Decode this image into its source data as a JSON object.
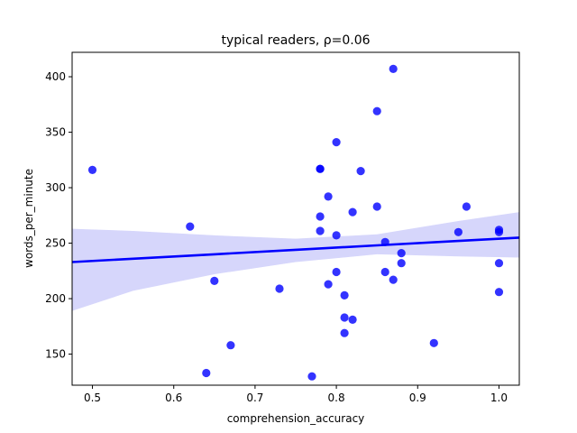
{
  "chart_data": {
    "type": "scatter",
    "title": "typical readers, ρ=0.06",
    "xlabel": "comprehension_accuracy",
    "ylabel": "words_per_minute",
    "xlim": [
      0.475,
      1.025
    ],
    "ylim": [
      122,
      422
    ],
    "x_ticks": [
      0.5,
      0.6,
      0.7,
      0.8,
      0.9,
      1.0
    ],
    "x_tick_labels": [
      "0.5",
      "0.6",
      "0.7",
      "0.8",
      "0.9",
      "1.0"
    ],
    "y_ticks": [
      150,
      200,
      250,
      300,
      350,
      400
    ],
    "y_tick_labels": [
      "150",
      "200",
      "250",
      "300",
      "350",
      "400"
    ],
    "grid": false,
    "legend": "none",
    "colors": {
      "points": "#0000ff",
      "line": "#0000ff",
      "band": "#d6d6fb"
    },
    "series": [
      {
        "points": [
          {
            "x": 0.5,
            "y": 316
          },
          {
            "x": 0.62,
            "y": 265
          },
          {
            "x": 0.64,
            "y": 133
          },
          {
            "x": 0.65,
            "y": 216
          },
          {
            "x": 0.67,
            "y": 158
          },
          {
            "x": 0.73,
            "y": 209
          },
          {
            "x": 0.77,
            "y": 130
          },
          {
            "x": 0.78,
            "y": 317
          },
          {
            "x": 0.78,
            "y": 317
          },
          {
            "x": 0.78,
            "y": 274
          },
          {
            "x": 0.78,
            "y": 261
          },
          {
            "x": 0.79,
            "y": 292
          },
          {
            "x": 0.79,
            "y": 213
          },
          {
            "x": 0.8,
            "y": 341
          },
          {
            "x": 0.8,
            "y": 257
          },
          {
            "x": 0.8,
            "y": 224
          },
          {
            "x": 0.81,
            "y": 203
          },
          {
            "x": 0.81,
            "y": 183
          },
          {
            "x": 0.81,
            "y": 169
          },
          {
            "x": 0.82,
            "y": 278
          },
          {
            "x": 0.82,
            "y": 181
          },
          {
            "x": 0.83,
            "y": 315
          },
          {
            "x": 0.85,
            "y": 369
          },
          {
            "x": 0.85,
            "y": 283
          },
          {
            "x": 0.86,
            "y": 251
          },
          {
            "x": 0.86,
            "y": 224
          },
          {
            "x": 0.87,
            "y": 407
          },
          {
            "x": 0.87,
            "y": 217
          },
          {
            "x": 0.88,
            "y": 241
          },
          {
            "x": 0.88,
            "y": 232
          },
          {
            "x": 0.92,
            "y": 160
          },
          {
            "x": 0.95,
            "y": 260
          },
          {
            "x": 0.96,
            "y": 283
          },
          {
            "x": 1.0,
            "y": 262
          },
          {
            "x": 1.0,
            "y": 260
          },
          {
            "x": 1.0,
            "y": 232
          },
          {
            "x": 1.0,
            "y": 206
          }
        ]
      }
    ],
    "regression": {
      "x": [
        0.475,
        0.55,
        0.65,
        0.75,
        0.85,
        0.95,
        1.025
      ],
      "y": [
        233,
        236,
        240,
        244,
        248,
        252,
        255
      ],
      "ci_upper": [
        263,
        261,
        257,
        254,
        258,
        270,
        278
      ],
      "ci_lower": [
        189,
        207,
        222,
        233,
        240,
        238,
        237
      ]
    }
  }
}
